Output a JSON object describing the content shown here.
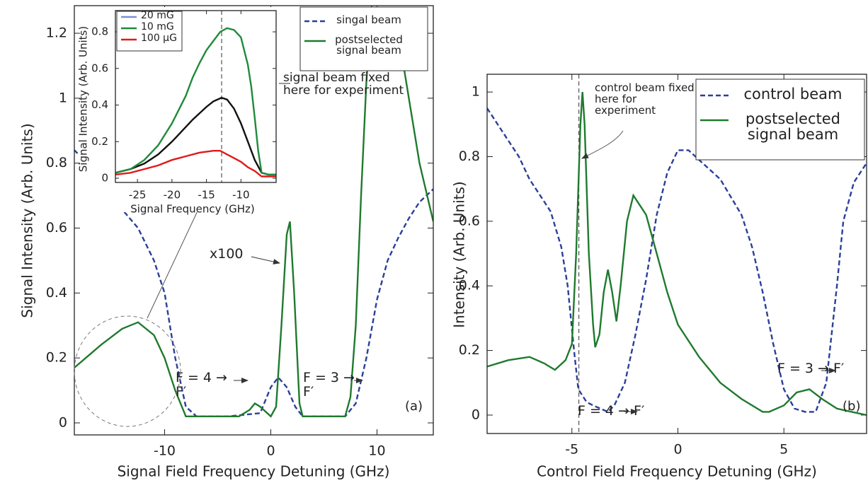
{
  "chart_data": [
    {
      "type": "line",
      "xlabel": "Signal Field Frequency Detuning (GHz)",
      "ylabel": "Signal Intensity (Arb. Units)",
      "xlim": [
        -18.5,
        15.3
      ],
      "ylim": [
        -0.037,
        1.285
      ],
      "xticks": [
        -10,
        0,
        10
      ],
      "yticks": [
        0,
        0.2,
        0.4,
        0.6,
        0.8,
        1,
        1.2
      ],
      "series": [
        {
          "name": "singal beam",
          "color": "#2b3f9a",
          "dashed": true,
          "x": [
            -18.5,
            -18.2,
            null,
            -13.8,
            -12.5,
            -11,
            -10,
            -9,
            -8,
            -7,
            -4,
            -1,
            0,
            0.7,
            1.5,
            2.3,
            3,
            5,
            7,
            8,
            9,
            10,
            11,
            12,
            13,
            14,
            15.3
          ],
          "values": [
            0.84,
            0.83,
            null,
            0.65,
            0.6,
            0.5,
            0.4,
            0.2,
            0.05,
            0.02,
            0.02,
            0.03,
            0.11,
            0.14,
            0.11,
            0.05,
            0.02,
            0.02,
            0.02,
            0.06,
            0.2,
            0.38,
            0.5,
            0.57,
            0.63,
            0.68,
            0.72
          ]
        },
        {
          "name": "postselected signal beam",
          "color": "#1f7a2e",
          "dashed": false,
          "x": [
            -18.5,
            -16,
            -14,
            -12.5,
            -11,
            -10,
            -9,
            -8,
            -7,
            -3,
            -2,
            -1.5,
            -1,
            0,
            0.5,
            1,
            1.5,
            1.8,
            2.2,
            2.7,
            3,
            5,
            7,
            7.5,
            8,
            8.5,
            9,
            9.5,
            10,
            11,
            12,
            13,
            14,
            15.3
          ],
          "values": [
            0.17,
            0.24,
            0.29,
            0.31,
            0.27,
            0.2,
            0.1,
            0.02,
            0.02,
            0.02,
            0.04,
            0.06,
            0.05,
            0.02,
            0.05,
            0.3,
            0.58,
            0.62,
            0.4,
            0.06,
            0.02,
            0.02,
            0.02,
            0.08,
            0.3,
            0.7,
            1.05,
            1.28,
            1.25,
            1.1,
            1.2,
            1.0,
            0.8,
            0.62
          ]
        }
      ],
      "annotations": [
        "signal beam fixed here for experiment",
        "x100",
        "F = 4 → F′",
        "F = 3 → F′",
        "(a)"
      ]
    },
    {
      "type": "line",
      "xlabel": "Signal Frequency (GHz)",
      "ylabel": "Signal Intensity (Arb. Units)",
      "xlim": [
        -28.2,
        -4.9
      ],
      "ylim": [
        -0.023,
        0.916
      ],
      "xticks": [
        -25,
        -20,
        -15,
        -10
      ],
      "yticks": [
        0,
        0.2,
        0.4,
        0.6,
        0.8
      ],
      "reference_x": -12.8,
      "series": [
        {
          "name": "20 mG",
          "color": "#111111",
          "legend_color": "#7b8fd0",
          "x": [
            -28.2,
            -26,
            -24,
            -22,
            -20,
            -18,
            -17,
            -15,
            -14,
            -12.8,
            -12,
            -11,
            -10,
            -9,
            -8,
            -7,
            -6,
            -4.9
          ],
          "values": [
            0.03,
            0.05,
            0.08,
            0.13,
            0.2,
            0.28,
            0.32,
            0.39,
            0.42,
            0.44,
            0.43,
            0.38,
            0.3,
            0.2,
            0.1,
            0.03,
            0.02,
            0.02
          ]
        },
        {
          "name": "10 mG",
          "color": "#1f8a3a",
          "x": [
            -28.2,
            -26,
            -24,
            -22,
            -20,
            -18,
            -17,
            -16,
            -15,
            -14,
            -13,
            -12,
            -11,
            -10,
            -9,
            -8.5,
            -8,
            -7.5,
            -7,
            -6,
            -4.9
          ],
          "values": [
            0.03,
            0.05,
            0.1,
            0.18,
            0.3,
            0.45,
            0.55,
            0.63,
            0.7,
            0.75,
            0.8,
            0.82,
            0.81,
            0.77,
            0.62,
            0.5,
            0.33,
            0.15,
            0.03,
            0.02,
            0.02
          ]
        },
        {
          "name": "100 μG",
          "color": "#e01a1a",
          "x": [
            -28.2,
            -26,
            -24,
            -22,
            -20,
            -18,
            -16,
            -14,
            -13,
            -12,
            -11,
            -10,
            -9,
            -8,
            -7,
            -6,
            -4.9
          ],
          "values": [
            0.02,
            0.03,
            0.05,
            0.07,
            0.1,
            0.12,
            0.14,
            0.15,
            0.15,
            0.13,
            0.11,
            0.09,
            0.06,
            0.04,
            0.01,
            0.01,
            0.01
          ]
        }
      ]
    },
    {
      "type": "line",
      "xlabel": "Control Field Frequency Detuning (GHz)",
      "ylabel": "Intensity (Arb. Units)",
      "xlim": [
        -9,
        8.9
      ],
      "ylim": [
        -0.057,
        1.055
      ],
      "xticks": [
        -5,
        0,
        5
      ],
      "yticks": [
        0,
        0.2,
        0.4,
        0.6,
        0.8,
        1
      ],
      "reference_x": -4.67,
      "series": [
        {
          "name": "control beam",
          "color": "#2b3f9a",
          "dashed": true,
          "x": [
            -9,
            -8,
            -7.5,
            -7,
            -6.5,
            -6,
            -5.5,
            -5.2,
            -4.9,
            -4.7,
            -4.3,
            -4,
            -3.3,
            -3,
            -2.5,
            -2,
            -1.5,
            -1,
            -0.5,
            0,
            0.5,
            1,
            2,
            3,
            3.5,
            4,
            4.5,
            5,
            5.5,
            6,
            6.5,
            7,
            7.5,
            7.8,
            8.3,
            8.9
          ],
          "values": [
            0.95,
            0.85,
            0.8,
            0.73,
            0.68,
            0.63,
            0.52,
            0.4,
            0.2,
            0.08,
            0.04,
            0.03,
            0.01,
            0.03,
            0.1,
            0.25,
            0.42,
            0.62,
            0.75,
            0.82,
            0.82,
            0.79,
            0.73,
            0.62,
            0.52,
            0.38,
            0.22,
            0.08,
            0.02,
            0.01,
            0.01,
            0.1,
            0.4,
            0.6,
            0.72,
            0.78
          ]
        },
        {
          "name": "postselected signal beam",
          "color": "#1f7a2e",
          "dashed": false,
          "x": [
            -9,
            -8,
            -7,
            -6.3,
            -5.8,
            -5.3,
            -5,
            -4.8,
            -4.6,
            -4.5,
            -4.4,
            -4.2,
            -4,
            -3.9,
            -3.7,
            -3.5,
            -3.3,
            -3.1,
            -2.9,
            -2.7,
            -2.4,
            -2.1,
            -1.5,
            -1,
            -0.5,
            0,
            1,
            2,
            3,
            4,
            4.3,
            5,
            5.6,
            6.2,
            6.8,
            7.5,
            8.2,
            8.9
          ],
          "values": [
            0.15,
            0.17,
            0.18,
            0.16,
            0.14,
            0.17,
            0.22,
            0.5,
            0.9,
            1.0,
            0.9,
            0.5,
            0.28,
            0.21,
            0.25,
            0.38,
            0.45,
            0.38,
            0.29,
            0.4,
            0.6,
            0.68,
            0.62,
            0.5,
            0.38,
            0.28,
            0.18,
            0.1,
            0.05,
            0.01,
            0.01,
            0.03,
            0.07,
            0.08,
            0.05,
            0.02,
            0.01,
            0.0
          ]
        }
      ],
      "annotations": [
        "control beam fixed here for experiment",
        "F = 4 → F′",
        "F = 3 → F′",
        "(b)"
      ]
    }
  ]
}
